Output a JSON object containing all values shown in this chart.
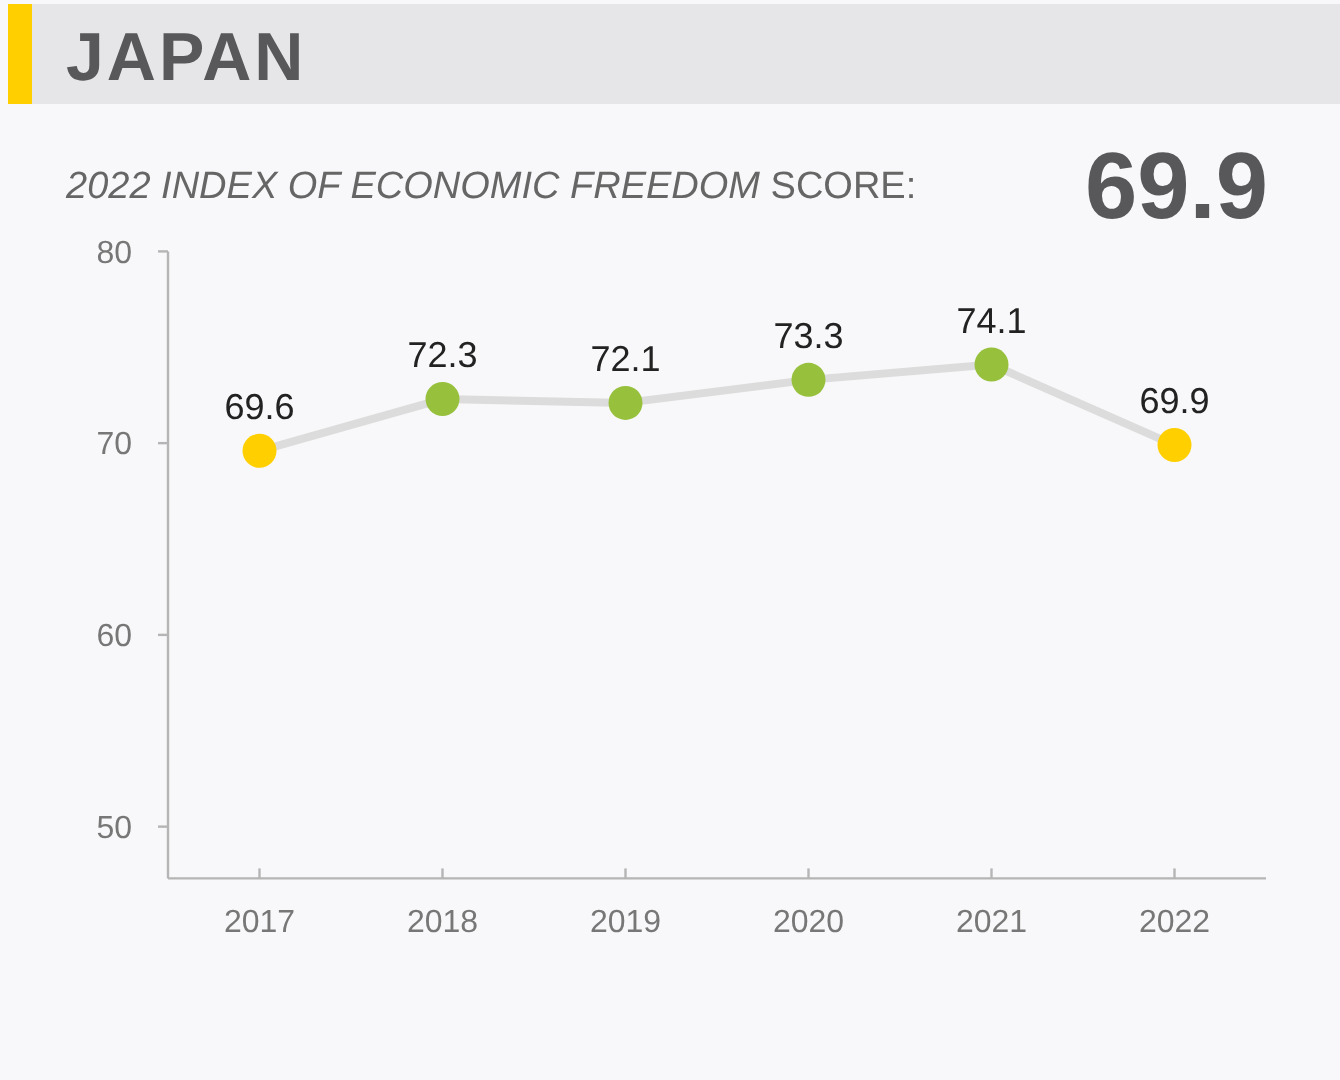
{
  "chart_data": {
    "type": "line",
    "title": "JAPAN",
    "subtitle": "2022 INDEX OF ECONOMIC FREEDOM SCORE:",
    "annotations": [
      "69.9"
    ],
    "categories": [
      "2017",
      "2018",
      "2019",
      "2020",
      "2021",
      "2022"
    ],
    "series": [
      {
        "values": [
          69.6,
          72.3,
          72.1,
          73.3,
          74.1,
          69.9
        ],
        "color": "#dcdcdc",
        "colors": [
          "#ffcf00",
          "#97c13c",
          "#97c13c",
          "#97c13c",
          "#97c13c",
          "#ffcf00"
        ]
      }
    ],
    "ylim": [
      47.3,
      80
    ],
    "yticks": [
      50,
      60,
      70,
      80
    ],
    "data_labels": true,
    "marker": "circle",
    "line_style": "solid"
  }
}
